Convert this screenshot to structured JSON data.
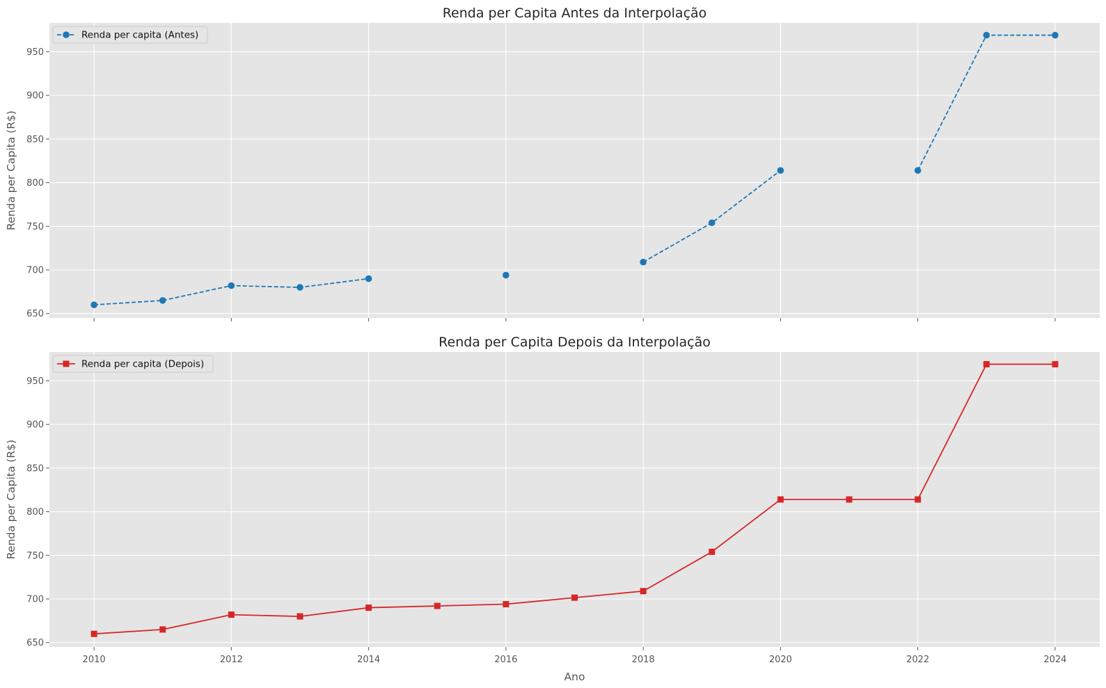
{
  "chart_data": [
    {
      "type": "line",
      "title": "Renda per Capita Antes da Interpolação",
      "xlabel": "",
      "ylabel": "Renda per Capita (R$)",
      "xlim": [
        2009.35,
        2024.65
      ],
      "ylim": [
        645,
        983
      ],
      "xticks": [
        2010,
        2012,
        2014,
        2016,
        2018,
        2020,
        2022,
        2024
      ],
      "xtick_labels_visible": false,
      "yticks": [
        650,
        700,
        750,
        800,
        850,
        900,
        950
      ],
      "grid": true,
      "legend_position": "upper-left",
      "series": [
        {
          "name": "Renda per capita (Antes)",
          "color": "#1f77b4",
          "line_style": "dashed",
          "marker": "circle",
          "x": [
            2010,
            2011,
            2012,
            2013,
            2014,
            2015,
            2016,
            2017,
            2018,
            2019,
            2020,
            2021,
            2022,
            2023,
            2024
          ],
          "y": [
            660,
            665,
            682,
            680,
            690,
            null,
            694,
            null,
            709,
            754,
            814,
            null,
            814,
            969,
            969
          ]
        }
      ]
    },
    {
      "type": "line",
      "title": "Renda per Capita Depois da Interpolação",
      "xlabel": "Ano",
      "ylabel": "Renda per Capita (R$)",
      "xlim": [
        2009.35,
        2024.65
      ],
      "ylim": [
        645,
        983
      ],
      "xticks": [
        2010,
        2012,
        2014,
        2016,
        2018,
        2020,
        2022,
        2024
      ],
      "xtick_labels_visible": true,
      "yticks": [
        650,
        700,
        750,
        800,
        850,
        900,
        950
      ],
      "grid": true,
      "legend_position": "upper-left",
      "series": [
        {
          "name": "Renda per capita (Depois)",
          "color": "#d62728",
          "line_style": "solid",
          "marker": "square",
          "x": [
            2010,
            2011,
            2012,
            2013,
            2014,
            2015,
            2016,
            2017,
            2018,
            2019,
            2020,
            2021,
            2022,
            2023,
            2024
          ],
          "y": [
            660,
            665,
            682,
            680,
            690,
            692,
            694,
            701.5,
            709,
            754,
            814,
            814,
            814,
            969,
            969
          ]
        }
      ]
    }
  ],
  "style": {
    "axes_background": "#e5e5e5",
    "grid_color": "#ffffff",
    "text_color": "#555555",
    "title_color": "#262626"
  }
}
